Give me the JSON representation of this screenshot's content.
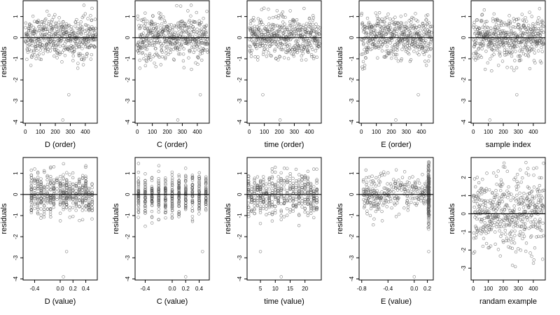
{
  "chart_data": [
    {
      "type": "scatter",
      "title": "",
      "xlabel": "D (order)",
      "ylabel": "residuals",
      "xlim": [
        -15,
        480
      ],
      "ylim": [
        -4.05,
        1.75
      ],
      "xticks": [
        0,
        100,
        200,
        300,
        400
      ],
      "yticks": [
        -4,
        -3,
        -2,
        -1,
        0,
        1
      ],
      "hline": 0,
      "n": 470,
      "gen": "index",
      "outliers": [
        [
          290,
          -2.7
        ],
        [
          250,
          -3.9
        ]
      ]
    },
    {
      "type": "scatter",
      "title": "",
      "xlabel": "C (order)",
      "ylabel": "residuals",
      "xlim": [
        -15,
        480
      ],
      "ylim": [
        -4.05,
        1.75
      ],
      "xticks": [
        0,
        100,
        200,
        300,
        400
      ],
      "yticks": [
        -4,
        -3,
        -2,
        -1,
        0,
        1
      ],
      "hline": 0,
      "n": 470,
      "gen": "index",
      "outliers": [
        [
          420,
          -2.7
        ],
        [
          270,
          -3.9
        ]
      ]
    },
    {
      "type": "scatter",
      "title": "",
      "xlabel": "time (order)",
      "ylabel": "residuals",
      "xlim": [
        -15,
        480
      ],
      "ylim": [
        -4.05,
        1.75
      ],
      "xticks": [
        0,
        100,
        200,
        300,
        400
      ],
      "yticks": [
        -4,
        -3,
        -2,
        -1,
        0,
        1
      ],
      "hline": 0,
      "n": 470,
      "gen": "index",
      "outliers": [
        [
          90,
          -2.7
        ],
        [
          205,
          -3.9
        ]
      ]
    },
    {
      "type": "scatter",
      "title": "",
      "xlabel": "E (order)",
      "ylabel": "residuals",
      "xlim": [
        -15,
        480
      ],
      "ylim": [
        -4.05,
        1.75
      ],
      "xticks": [
        0,
        100,
        200,
        300,
        400
      ],
      "yticks": [
        -4,
        -3,
        -2,
        -1,
        0,
        1
      ],
      "hline": 0,
      "n": 470,
      "gen": "index",
      "outliers": [
        [
          380,
          -2.7
        ],
        [
          230,
          -3.9
        ]
      ]
    },
    {
      "type": "scatter",
      "title": "",
      "xlabel": "sample index",
      "ylabel": "residuals",
      "xlim": [
        -15,
        480
      ],
      "ylim": [
        -4.05,
        1.75
      ],
      "xticks": [
        0,
        100,
        200,
        300,
        400
      ],
      "yticks": [
        -4,
        -3,
        -2,
        -1,
        0,
        1
      ],
      "hline": 0,
      "n": 470,
      "gen": "index",
      "outliers": [
        [
          290,
          -2.7
        ],
        [
          110,
          -3.9
        ]
      ]
    },
    {
      "type": "scatter",
      "title": "",
      "xlabel": "D (value)",
      "ylabel": "residuals",
      "xlim": [
        -0.58,
        0.58
      ],
      "ylim": [
        -4.05,
        1.75
      ],
      "xticks": [
        -0.4,
        0.0,
        0.2,
        0.4
      ],
      "xtick_labels": [
        "-0.4",
        "0.0",
        "0.2",
        "0.4"
      ],
      "yticks": [
        -4,
        -3,
        -2,
        -1,
        0,
        1
      ],
      "hline": 0,
      "n": 470,
      "gen": "levels",
      "levels": [
        -0.45,
        -0.4,
        -0.35,
        -0.3,
        -0.25,
        -0.2,
        -0.15,
        -0.1,
        -0.05,
        0.0,
        0.05,
        0.1,
        0.15,
        0.2,
        0.25,
        0.3,
        0.35,
        0.4,
        0.45,
        0.5
      ],
      "outliers": [
        [
          0.1,
          -2.7
        ],
        [
          0.05,
          -3.9
        ]
      ]
    },
    {
      "type": "scatter",
      "title": "",
      "xlabel": "C (value)",
      "ylabel": "residuals",
      "xlim": [
        -0.55,
        0.55
      ],
      "ylim": [
        -4.05,
        1.75
      ],
      "xticks": [
        -0.4,
        0.0,
        0.2,
        0.4
      ],
      "xtick_labels": [
        "-0.4",
        "0.0",
        "0.2",
        "0.4"
      ],
      "yticks": [
        -4,
        -3,
        -2,
        -1,
        0,
        1
      ],
      "hline": 0,
      "n": 470,
      "gen": "levels",
      "levels": [
        -0.5,
        -0.4,
        -0.3,
        -0.2,
        -0.1,
        0.0,
        0.1,
        0.2,
        0.3,
        0.4,
        0.5
      ],
      "outliers": [
        [
          0.45,
          -2.7
        ],
        [
          0.2,
          -3.9
        ]
      ]
    },
    {
      "type": "scatter",
      "title": "",
      "xlabel": "time (value)",
      "ylabel": "residuals",
      "xlim": [
        0.5,
        25.5
      ],
      "ylim": [
        -4.05,
        1.75
      ],
      "xticks": [
        5,
        10,
        15,
        20
      ],
      "yticks": [
        -4,
        -3,
        -2,
        -1,
        0,
        1
      ],
      "hline": 0,
      "n": 470,
      "gen": "levels",
      "levels": [
        1,
        2,
        3,
        4,
        5,
        6,
        7,
        8,
        9,
        10,
        11,
        12,
        13,
        14,
        15,
        16,
        17,
        18,
        19,
        20,
        21,
        22,
        23,
        24
      ],
      "outliers": [
        [
          5,
          -2.7
        ],
        [
          12,
          -3.9
        ]
      ]
    },
    {
      "type": "scatter",
      "title": "",
      "xlabel": "E (value)",
      "ylabel": "residuals",
      "xlim": [
        -0.84,
        0.29
      ],
      "ylim": [
        -4.05,
        1.75
      ],
      "xticks": [
        -0.8,
        -0.4,
        0.0,
        0.2
      ],
      "xtick_labels": [
        "-0.8",
        "-0.4",
        "0.0",
        "0.2"
      ],
      "yticks": [
        -4,
        -3,
        -2,
        -1,
        0,
        1
      ],
      "hline": 0,
      "n": 470,
      "gen": "evalue",
      "outliers": [
        [
          0.22,
          -2.7
        ],
        [
          0.0,
          -3.9
        ]
      ]
    },
    {
      "type": "scatter",
      "title": "",
      "xlabel": "randam example",
      "ylabel": "residuals",
      "xlim": [
        -15,
        480
      ],
      "ylim": [
        -3.65,
        3.1
      ],
      "xticks": [
        0,
        100,
        200,
        300,
        400
      ],
      "yticks": [
        -3,
        -2,
        -1,
        0,
        1,
        2
      ],
      "hline": 0,
      "n": 470,
      "gen": "random",
      "outliers": []
    }
  ]
}
